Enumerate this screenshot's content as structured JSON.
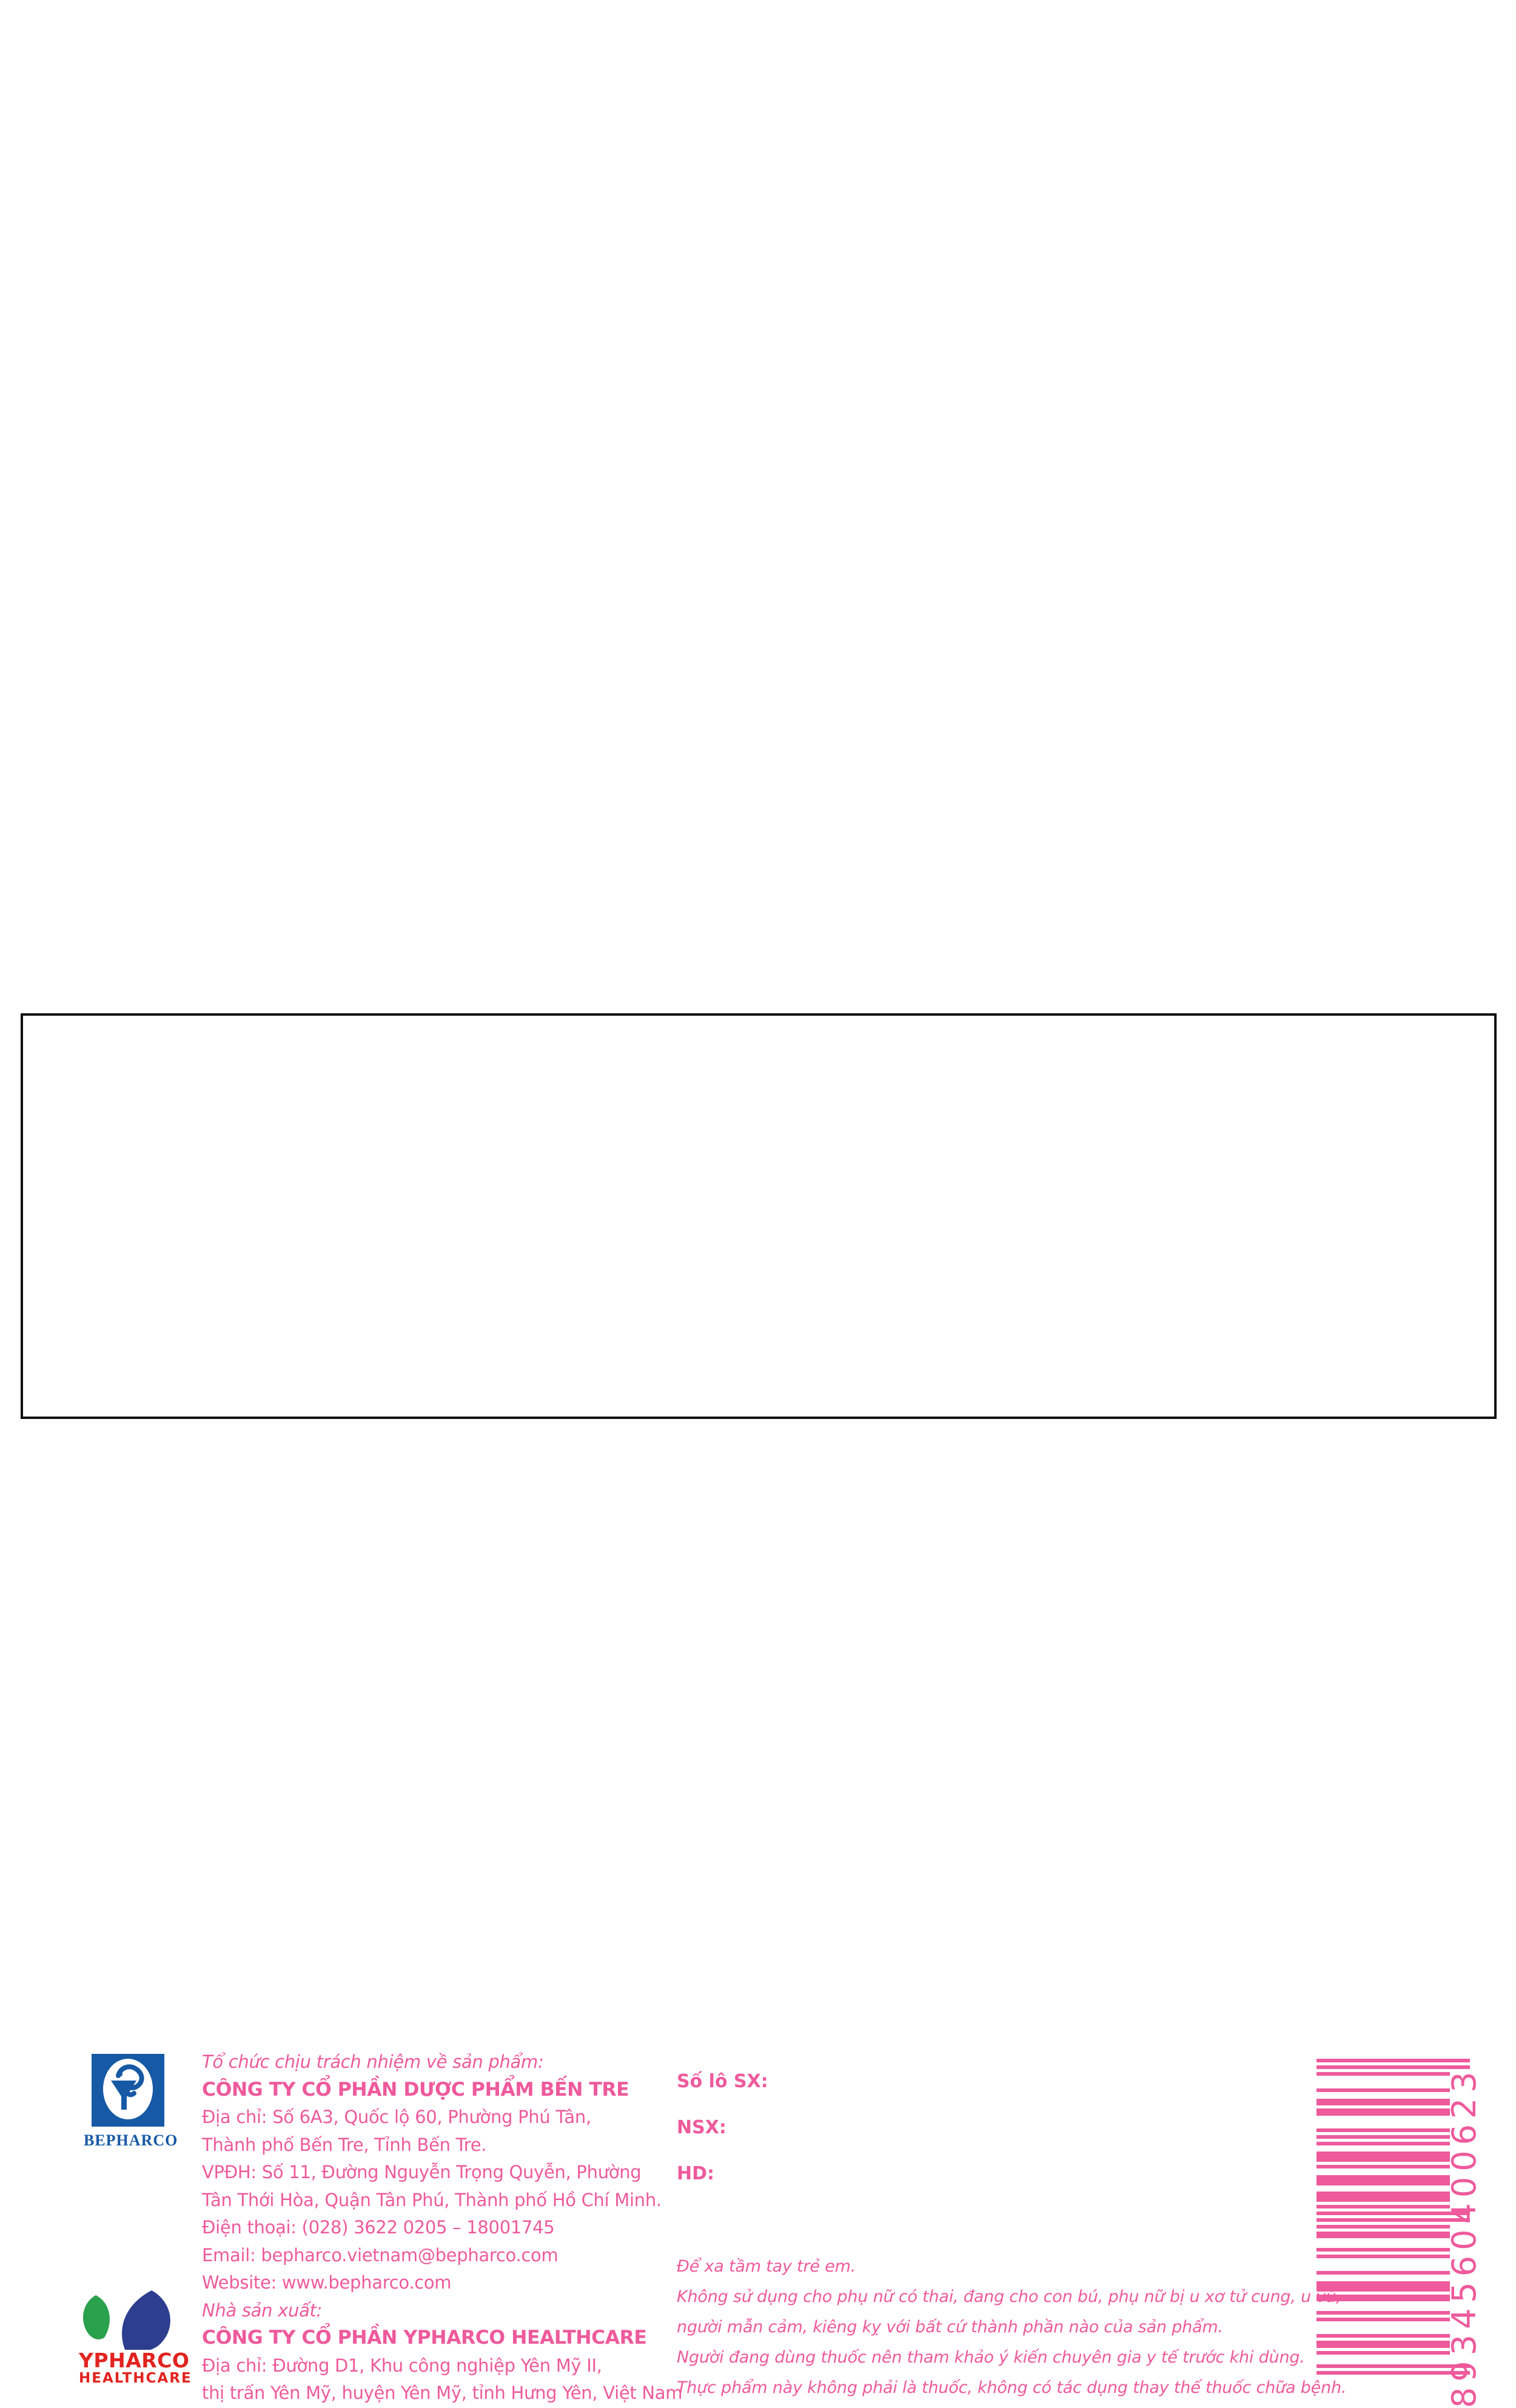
{
  "colors": {
    "pink": "#EE5A9C",
    "blue": "#1659A5",
    "red": "#E2231F",
    "leaf_green": "#2AA14C",
    "leaf_navy": "#2D3E8F",
    "border": "#111111"
  },
  "label": {
    "bepharco_logo": {
      "wordmark": "BEPHARCO"
    },
    "ypharco_logo": {
      "wordmark": "YPHARCO",
      "subtext": "HEALTHCARE"
    },
    "responsible_org": {
      "heading": "Tổ chức chịu trách nhiệm về sản phẩm:",
      "company": "CÔNG TY CỔ PHẦN DƯỢC PHẨM BẾN TRE",
      "address_lines": [
        "Địa chỉ: Số 6A3, Quốc lộ 60, Phường Phú Tân,",
        "Thành phố Bến Tre, Tỉnh Bến Tre.",
        "VPĐH: Số 11, Đường Nguyễn Trọng Quyễn, Phường",
        "Tân Thới Hòa, Quận Tân Phú, Thành phố Hồ Chí Minh."
      ],
      "phone": "Điện thoại: (028) 3622 0205 – 18001745",
      "email": "Email: bepharco.vietnam@bepharco.com",
      "website": "Website: www.bepharco.com"
    },
    "manufacturer": {
      "heading": "Nhà sản xuất:",
      "company": "CÔNG TY CỔ PHẦN YPHARCO HEALTHCARE",
      "address_lines": [
        "Địa chỉ: Đường D1, Khu công nghiệp Yên Mỹ II,",
        "thị trấn Yên Mỹ, huyện Yên Mỹ, tỉnh Hưng Yên, Việt Nam"
      ]
    },
    "batch_fields": [
      "Số lô SX:",
      "NSX:",
      "HD:"
    ],
    "warnings": [
      "Để xa tầm tay trẻ em.",
      "Không sử dụng cho phụ nữ có thai, đang cho con bú, phụ nữ bị u xơ tử cung, u vú,",
      "người mẫn cảm, kiêng kỵ với bất cứ thành phần nào của sản phẩm.",
      "Người đang dùng thuốc nên tham khảo ý kiến chuyên gia y tế trước khi dùng.",
      "Thực phẩm này không phải là thuốc, không có tác dụng thay thế thuốc chữa bệnh."
    ],
    "barcode": {
      "number": "8934560400623"
    }
  }
}
